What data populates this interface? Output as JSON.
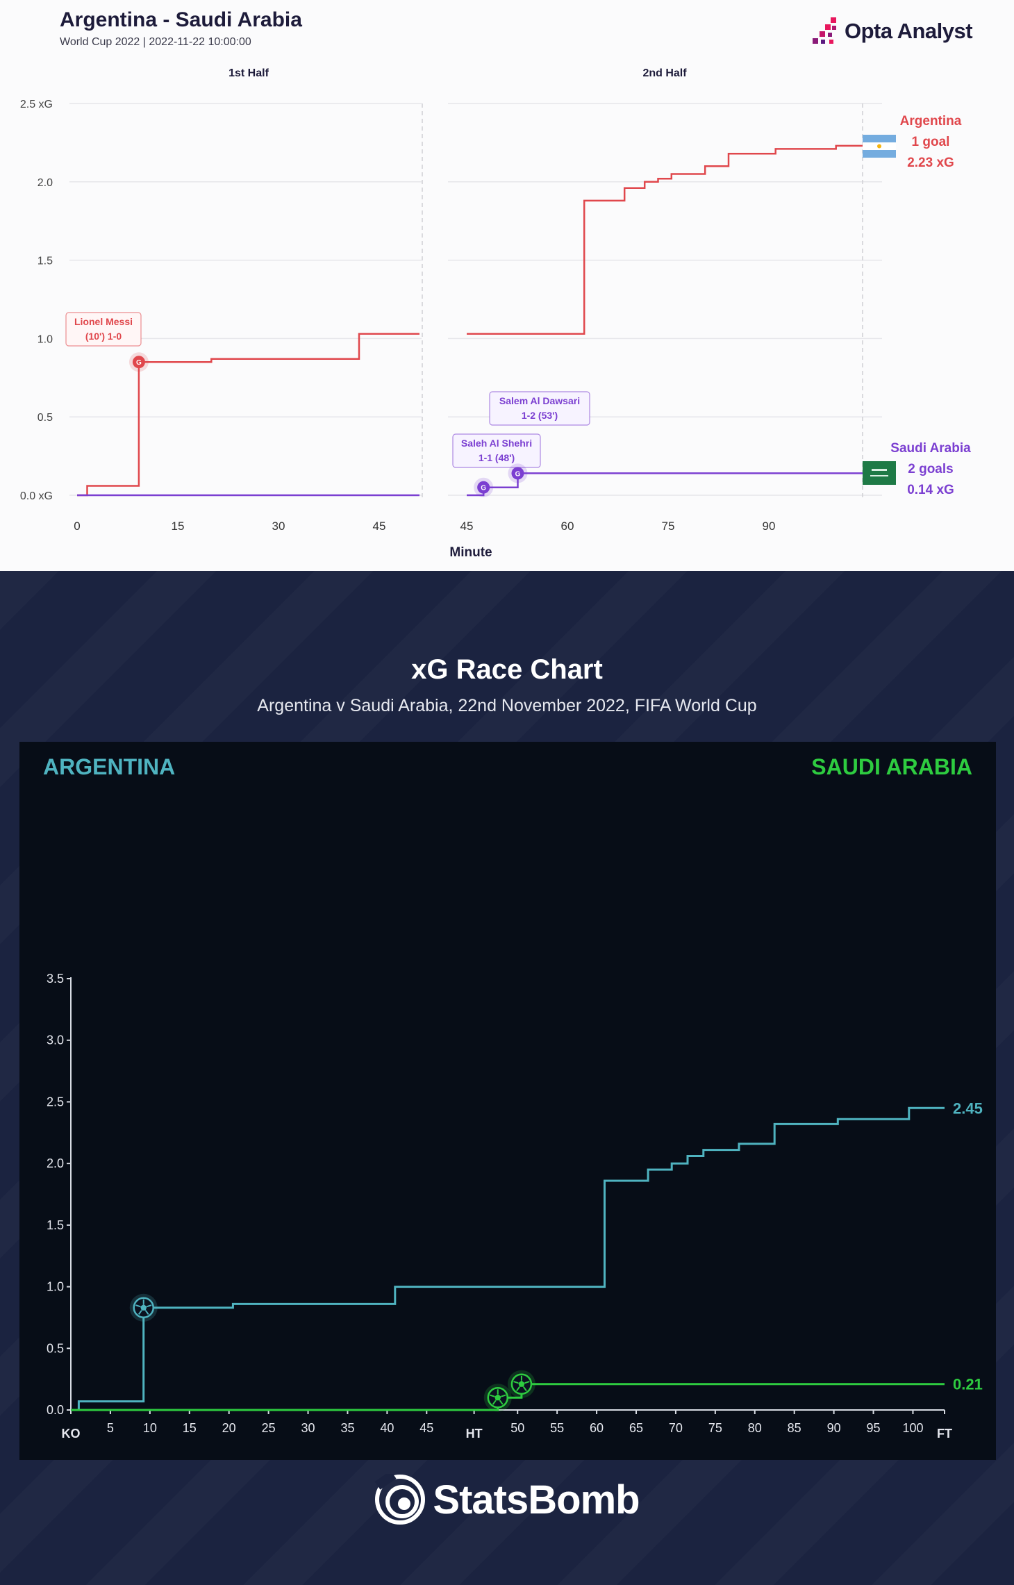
{
  "opta": {
    "title": "Argentina - Saudi Arabia",
    "subtitle": "World Cup 2022 | 2022-11-22 10:00:00",
    "brand": "Opta Analyst",
    "half_labels": [
      "1st Half",
      "2nd Half"
    ],
    "xlabel": "Minute",
    "ytick_labels": [
      "0.0 xG",
      "0.5",
      "1.0",
      "1.5",
      "2.0",
      "2.5 xG"
    ],
    "colors": {
      "argentina": "#e0474c",
      "saudi": "#7b3fd1"
    },
    "teams": {
      "argentina": {
        "name": "Argentina",
        "goals": "1 goal",
        "xg": "2.23 xG",
        "flag": "argentina-flag-icon"
      },
      "saudi": {
        "name": "Saudi Arabia",
        "goals": "2 goals",
        "xg": "0.14 xG",
        "flag": "saudi-flag-icon"
      }
    },
    "goal_marker_letter": "G",
    "annotations": [
      {
        "team": "argentina",
        "line1": "Lionel Messi",
        "line2": "(10') 1-0"
      },
      {
        "team": "saudi",
        "line1": "Saleh Al Shehri",
        "line2": "1-1 (48')"
      },
      {
        "team": "saudi",
        "line1": "Salem Al Dawsari",
        "line2": "1-2 (53')"
      }
    ]
  },
  "chart_data": [
    {
      "type": "line",
      "step": true,
      "xlabel": "Minute",
      "ylabel": "xG",
      "ylim": [
        0,
        2.5
      ],
      "grid": true,
      "legend_position": "right",
      "halves": [
        {
          "label": "1st Half",
          "xticks": [
            0,
            15,
            30,
            45
          ],
          "xlim": [
            0,
            51
          ]
        },
        {
          "label": "2nd Half",
          "xticks": [
            45,
            60,
            75,
            90
          ],
          "xlim": [
            45,
            104
          ]
        }
      ],
      "series": [
        {
          "name": "Argentina",
          "half1": [
            [
              0,
              0
            ],
            [
              1.5,
              0
            ],
            [
              1.5,
              0.06
            ],
            [
              9.2,
              0.06
            ],
            [
              9.2,
              0.85
            ],
            [
              20,
              0.85
            ],
            [
              20,
              0.87
            ],
            [
              42,
              0.87
            ],
            [
              42,
              1.03
            ],
            [
              51,
              1.03
            ]
          ],
          "half2": [
            [
              45,
              1.03
            ],
            [
              62.5,
              1.03
            ],
            [
              62.5,
              1.88
            ],
            [
              68.5,
              1.88
            ],
            [
              68.5,
              1.96
            ],
            [
              71.5,
              1.96
            ],
            [
              71.5,
              2.0
            ],
            [
              73.5,
              2.0
            ],
            [
              73.5,
              2.02
            ],
            [
              75.5,
              2.02
            ],
            [
              75.5,
              2.05
            ],
            [
              80.5,
              2.05
            ],
            [
              80.5,
              2.1
            ],
            [
              84,
              2.1
            ],
            [
              84,
              2.18
            ],
            [
              91,
              2.18
            ],
            [
              91,
              2.21
            ],
            [
              100,
              2.21
            ],
            [
              100,
              2.23
            ],
            [
              104,
              2.23
            ]
          ],
          "goals": [
            {
              "half": 1,
              "minute": 9.2,
              "xg": 0.85
            }
          ]
        },
        {
          "name": "Saudi Arabia",
          "half1": [
            [
              0,
              0
            ],
            [
              51,
              0
            ]
          ],
          "half2": [
            [
              45,
              0
            ],
            [
              47.5,
              0
            ],
            [
              47.5,
              0.05
            ],
            [
              52.6,
              0.05
            ],
            [
              52.6,
              0.14
            ],
            [
              104,
              0.14
            ]
          ],
          "goals": [
            {
              "half": 2,
              "minute": 47.5,
              "xg": 0.05
            },
            {
              "half": 2,
              "minute": 52.6,
              "xg": 0.14
            }
          ]
        }
      ]
    },
    {
      "type": "line",
      "step": true,
      "title": "xG Race Chart",
      "subtitle": "Argentina v Saudi Arabia, 22nd November 2022, FIFA World Cup",
      "ylim": [
        0,
        3.5
      ],
      "yticks": [
        0.0,
        0.5,
        1.0,
        1.5,
        2.0,
        2.5,
        3.0,
        3.5
      ],
      "ytick_labels": [
        "0.0",
        "0.5",
        "1.0",
        "1.5",
        "2.0",
        "2.5",
        "3.0",
        "3.5"
      ],
      "grid": false,
      "x_ticks": [
        {
          "pos": 0,
          "label": "KO",
          "bold": true
        },
        {
          "pos": 5,
          "label": "5"
        },
        {
          "pos": 10,
          "label": "10"
        },
        {
          "pos": 15,
          "label": "15"
        },
        {
          "pos": 20,
          "label": "20"
        },
        {
          "pos": 25,
          "label": "25"
        },
        {
          "pos": 30,
          "label": "30"
        },
        {
          "pos": 35,
          "label": "35"
        },
        {
          "pos": 40,
          "label": "40"
        },
        {
          "pos": 45,
          "label": "45"
        },
        {
          "pos": 51,
          "label": "HT",
          "bold": true
        },
        {
          "pos": 56.5,
          "label": "50"
        },
        {
          "pos": 61.5,
          "label": "55"
        },
        {
          "pos": 66.5,
          "label": "60"
        },
        {
          "pos": 71.5,
          "label": "65"
        },
        {
          "pos": 76.5,
          "label": "70"
        },
        {
          "pos": 81.5,
          "label": "75"
        },
        {
          "pos": 86.5,
          "label": "80"
        },
        {
          "pos": 91.5,
          "label": "85"
        },
        {
          "pos": 96.5,
          "label": "90"
        },
        {
          "pos": 101.5,
          "label": "95"
        },
        {
          "pos": 106.5,
          "label": "100"
        },
        {
          "pos": 110.5,
          "label": "FT",
          "bold": true
        }
      ],
      "xlim": [
        0,
        110.5
      ],
      "team_labels": {
        "left": "ARGENTINA",
        "right": "SAUDI ARABIA"
      },
      "brand": "StatsBomb",
      "series": [
        {
          "name": "ARGENTINA",
          "color": "#4fb3c0",
          "final_label": "2.45",
          "points": [
            [
              0,
              0.0
            ],
            [
              1,
              0.0
            ],
            [
              1,
              0.07
            ],
            [
              9.2,
              0.07
            ],
            [
              9.2,
              0.83
            ],
            [
              20.5,
              0.83
            ],
            [
              20.5,
              0.86
            ],
            [
              41,
              0.86
            ],
            [
              41,
              1.0
            ],
            [
              67.5,
              1.0
            ],
            [
              67.5,
              1.86
            ],
            [
              73,
              1.86
            ],
            [
              73,
              1.95
            ],
            [
              76,
              1.95
            ],
            [
              76,
              2.0
            ],
            [
              78,
              2.0
            ],
            [
              78,
              2.06
            ],
            [
              80,
              2.06
            ],
            [
              80,
              2.11
            ],
            [
              84.5,
              2.11
            ],
            [
              84.5,
              2.16
            ],
            [
              89,
              2.16
            ],
            [
              89,
              2.32
            ],
            [
              97,
              2.32
            ],
            [
              97,
              2.36
            ],
            [
              106,
              2.36
            ],
            [
              106,
              2.45
            ],
            [
              110.5,
              2.45
            ]
          ],
          "goal_markers": [
            [
              9.2,
              0.83
            ]
          ]
        },
        {
          "name": "SAUDI ARABIA",
          "color": "#2ecc40",
          "final_label": "0.21",
          "points": [
            [
              0,
              0.0
            ],
            [
              54,
              0.0
            ],
            [
              54,
              0.1
            ],
            [
              57,
              0.1
            ],
            [
              57,
              0.21
            ],
            [
              110.5,
              0.21
            ]
          ],
          "goal_markers": [
            [
              54,
              0.1
            ],
            [
              57,
              0.21
            ]
          ]
        }
      ]
    }
  ]
}
